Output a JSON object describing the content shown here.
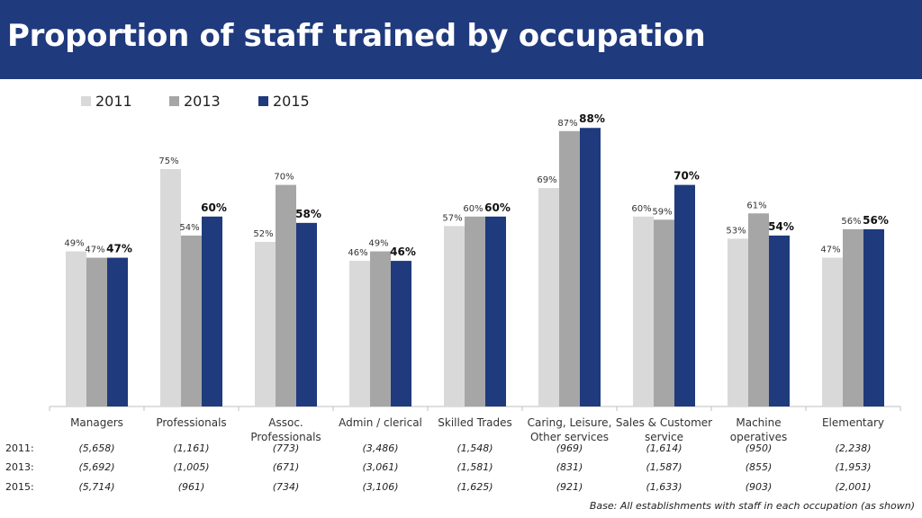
{
  "title": "Proportion of staff trained by occupation",
  "colors": {
    "header_bg": "#1f3a7d",
    "s2011": "#d9d9d9",
    "s2013": "#a6a6a6",
    "s2015": "#1f3a7d"
  },
  "chart_data": {
    "type": "bar",
    "title": "Proportion of staff trained by occupation",
    "ylabel": "",
    "xlabel": "",
    "ylim": [
      0,
      100
    ],
    "unit": "%",
    "grid": false,
    "legend_position": "top-left",
    "categories": [
      [
        "Managers"
      ],
      [
        "Professionals"
      ],
      [
        "Assoc.",
        "Professionals"
      ],
      [
        "Admin / clerical"
      ],
      [
        "Skilled Trades"
      ],
      [
        "Caring, Leisure,",
        "Other services"
      ],
      [
        "Sales & Customer",
        "service"
      ],
      [
        "Machine",
        "operatives"
      ],
      [
        "Elementary"
      ]
    ],
    "series": [
      {
        "name": "2011",
        "values": [
          49,
          75,
          52,
          46,
          57,
          69,
          60,
          53,
          47
        ]
      },
      {
        "name": "2013",
        "values": [
          47,
          54,
          70,
          49,
          60,
          87,
          59,
          61,
          56
        ]
      },
      {
        "name": "2015",
        "values": [
          47,
          60,
          58,
          46,
          60,
          88,
          70,
          54,
          56
        ],
        "bold_labels": true
      }
    ],
    "base_rows": [
      {
        "label": "2011:",
        "values": [
          "(5,658)",
          "(1,161)",
          "(773)",
          "(3,486)",
          "(1,548)",
          "(969)",
          "(1,614)",
          "(950)",
          "(2,238)"
        ]
      },
      {
        "label": "2013:",
        "values": [
          "(5,692)",
          "(1,005)",
          "(671)",
          "(3,061)",
          "(1,581)",
          "(831)",
          "(1,587)",
          "(855)",
          "(1,953)"
        ]
      },
      {
        "label": "2015:",
        "values": [
          "(5,714)",
          "(961)",
          "(734)",
          "(3,106)",
          "(1,625)",
          "(921)",
          "(1,633)",
          "(903)",
          "(2,001)"
        ]
      }
    ]
  },
  "footnote": "Base: All establishments with staff in each occupation (as shown)"
}
